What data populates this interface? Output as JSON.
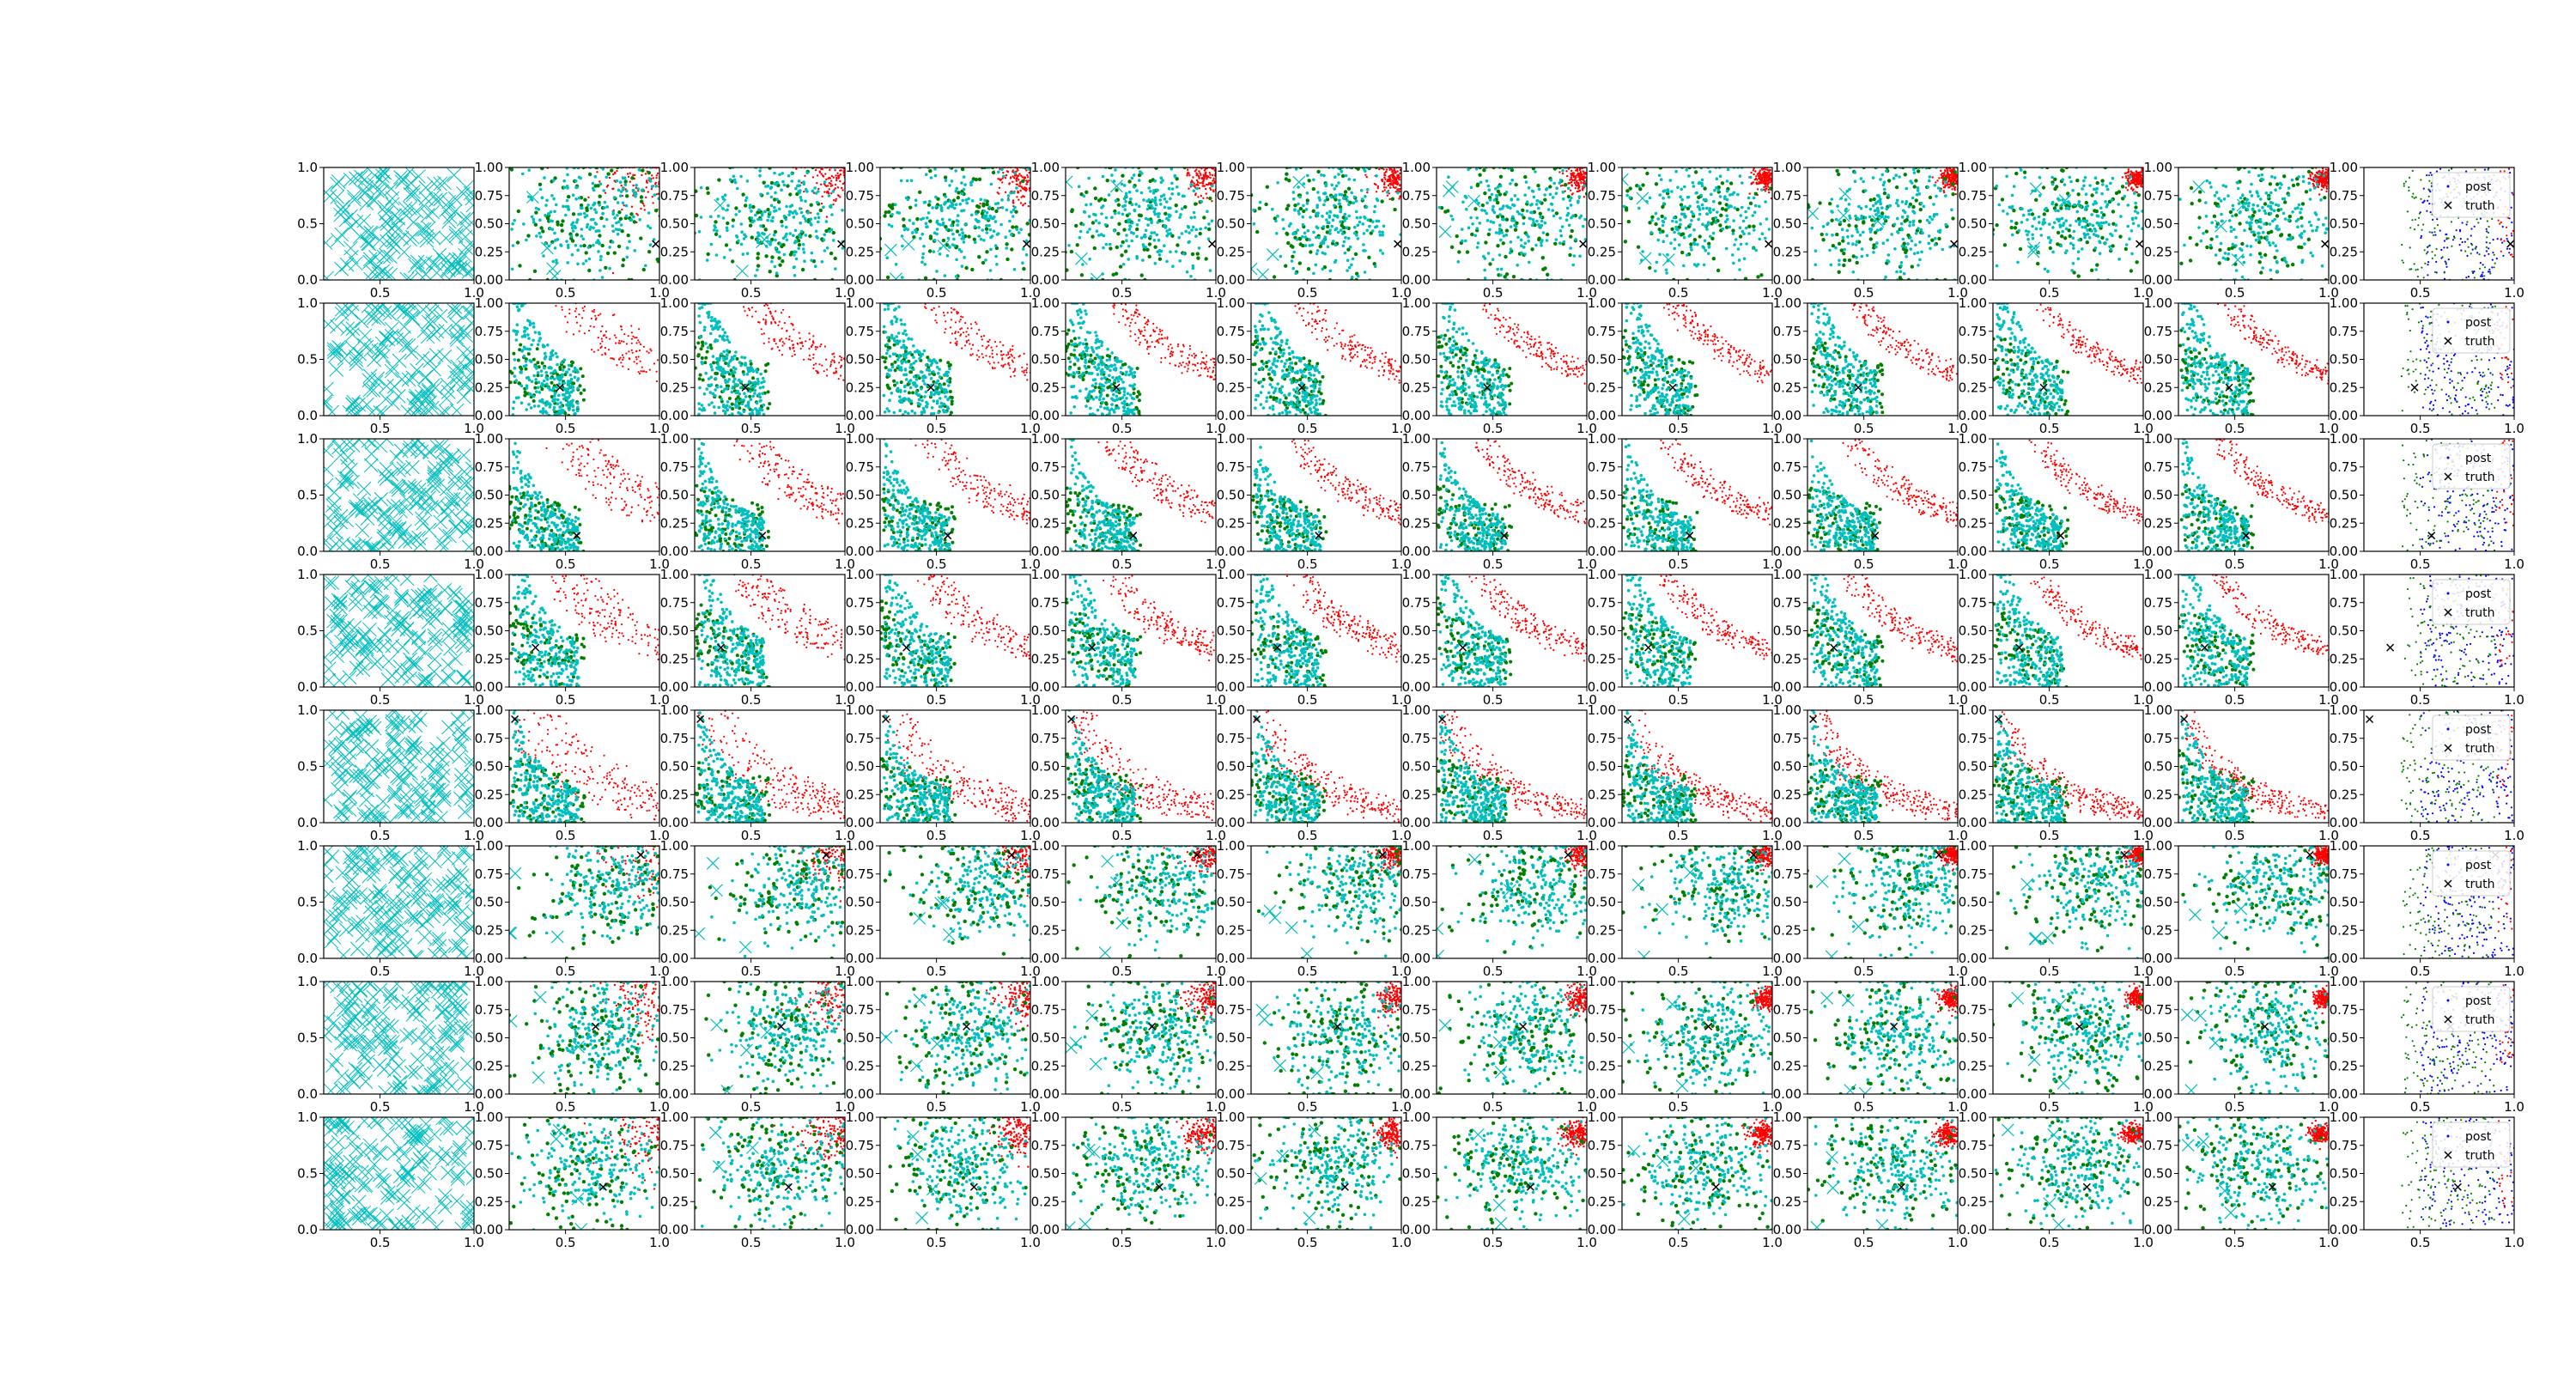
{
  "figure": {
    "background": "#ffffff",
    "axis_color": "#000000"
  },
  "colors": {
    "initial_samples": "#00bfbf",
    "accepted": "#00bfbf",
    "rejected": "#ff0000",
    "population": "#008000",
    "posterior": "#0000ff",
    "truth": "#000000"
  },
  "legend": {
    "entries": [
      "post",
      "truth"
    ]
  },
  "chart_data": {
    "type": "scatter",
    "grid": {
      "rows": 8,
      "cols": 12
    },
    "grid_lines": false,
    "xlim": [
      0.2,
      1.0
    ],
    "ylim": [
      0.0,
      1.0
    ],
    "first_col": {
      "xticks": [
        "0.5",
        "1.0"
      ],
      "yticks": [
        "0.0",
        "0.5",
        "1.0"
      ]
    },
    "other_cols": {
      "xticks": [
        "0.5",
        "1.0"
      ],
      "yticks": [
        "0.00",
        "0.25",
        "0.50",
        "0.75",
        "1.00"
      ]
    },
    "legend_entries": [
      "post",
      "truth"
    ],
    "legend_position": "upper right of last column",
    "rows": [
      {
        "truth": [
          0.98,
          0.32
        ],
        "kind": "blob",
        "rej_center": [
          0.97,
          0.9
        ],
        "acc_center": [
          0.6,
          0.55
        ],
        "spread": [
          0.26,
          0.3
        ]
      },
      {
        "truth": [
          0.47,
          0.25
        ],
        "kind": "band",
        "K_acc": 0.14,
        "K_rej": 0.5
      },
      {
        "truth": [
          0.56,
          0.14
        ],
        "kind": "band",
        "K_acc": 0.1,
        "K_rej": 0.45
      },
      {
        "truth": [
          0.34,
          0.35
        ],
        "kind": "band",
        "K_acc": 0.14,
        "K_rej": 0.45
      },
      {
        "truth": [
          0.23,
          0.92
        ],
        "kind": "band",
        "K_acc": 0.1,
        "K_rej": 0.22
      },
      {
        "truth": [
          0.9,
          0.92
        ],
        "kind": "blob",
        "rej_center": [
          0.97,
          0.92
        ],
        "acc_center": [
          0.72,
          0.65
        ],
        "spread": [
          0.22,
          0.3
        ]
      },
      {
        "truth": [
          0.66,
          0.6
        ],
        "kind": "blob",
        "rej_center": [
          0.97,
          0.85
        ],
        "acc_center": [
          0.65,
          0.55
        ],
        "spread": [
          0.2,
          0.3
        ]
      },
      {
        "truth": [
          0.7,
          0.38
        ],
        "kind": "blob",
        "rej_center": [
          0.95,
          0.85
        ],
        "acc_center": [
          0.6,
          0.55
        ],
        "spread": [
          0.22,
          0.3
        ]
      }
    ]
  }
}
